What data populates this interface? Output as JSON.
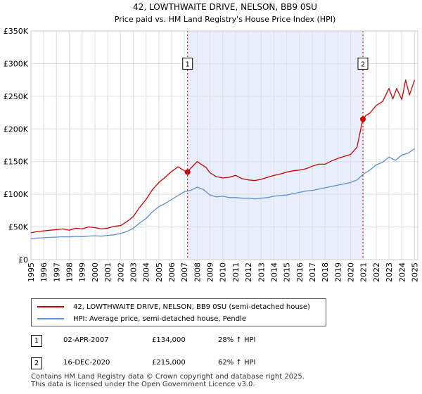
{
  "chart_data": {
    "type": "line",
    "title": "42, LOWTHWAITE DRIVE, NELSON, BB9 0SU",
    "subtitle": "Price paid vs. HM Land Registry's House Price Index (HPI)",
    "xlabel": "",
    "ylabel": "",
    "xlim": [
      1995,
      2025.25
    ],
    "ylim": [
      0,
      350000
    ],
    "x_ticks": [
      "1995",
      "1996",
      "1997",
      "1998",
      "1999",
      "2000",
      "2001",
      "2002",
      "2003",
      "2004",
      "2005",
      "2006",
      "2007",
      "2008",
      "2009",
      "2010",
      "2011",
      "2012",
      "2013",
      "2014",
      "2015",
      "2016",
      "2017",
      "2018",
      "2019",
      "2020",
      "2021",
      "2022",
      "2023",
      "2024",
      "2025"
    ],
    "y_ticks": [
      {
        "value": 0,
        "label": "£0"
      },
      {
        "value": 50000,
        "label": "£50K"
      },
      {
        "value": 100000,
        "label": "£100K"
      },
      {
        "value": 150000,
        "label": "£150K"
      },
      {
        "value": 200000,
        "label": "£200K"
      },
      {
        "value": 250000,
        "label": "£250K"
      },
      {
        "value": 300000,
        "label": "£300K"
      },
      {
        "value": 350000,
        "label": "£350K"
      }
    ],
    "grid": true,
    "shaded_region": {
      "x_start": 2007.25,
      "x_end": 2020.96,
      "color": "#e8eefc"
    },
    "series": [
      {
        "name": "42, LOWTHWAITE DRIVE, NELSON, BB9 0SU (semi-detached house)",
        "color": "#cc0000",
        "x": [
          1995,
          1995.5,
          1996,
          1996.5,
          1997,
          1997.5,
          1998,
          1998.5,
          1999,
          1999.5,
          2000,
          2000.5,
          2001,
          2001.5,
          2002,
          2002.5,
          2003,
          2003.5,
          2004,
          2004.5,
          2005,
          2005.5,
          2006,
          2006.5,
          2007,
          2007.25,
          2007.5,
          2008,
          2008.3,
          2008.7,
          2009,
          2009.5,
          2010,
          2010.5,
          2011,
          2011.5,
          2012,
          2012.5,
          2013,
          2013.5,
          2014,
          2014.5,
          2015,
          2015.5,
          2016,
          2016.5,
          2017,
          2017.5,
          2018,
          2018.5,
          2019,
          2019.5,
          2020,
          2020.5,
          2020.9,
          2020.96,
          2021.2,
          2021.5,
          2022,
          2022.5,
          2023,
          2023.3,
          2023.6,
          2024,
          2024.3,
          2024.6,
          2025
        ],
        "y": [
          41000,
          43000,
          44000,
          45000,
          46000,
          47000,
          45000,
          48000,
          47000,
          50000,
          49000,
          47000,
          48000,
          51000,
          52000,
          58000,
          66000,
          80000,
          92000,
          107000,
          118000,
          126000,
          135000,
          142000,
          136000,
          134000,
          140000,
          150000,
          146000,
          141000,
          133000,
          127000,
          125000,
          126000,
          129000,
          124000,
          122000,
          121000,
          123000,
          126000,
          129000,
          131000,
          134000,
          136000,
          137000,
          139000,
          143000,
          146000,
          146000,
          151000,
          155000,
          158000,
          161000,
          172000,
          210000,
          215000,
          221000,
          224000,
          236000,
          242000,
          262000,
          246000,
          262000,
          245000,
          275000,
          252000,
          275000
        ]
      },
      {
        "name": "HPI: Average price, semi-detached house, Pendle",
        "color": "#5b8ed6",
        "x": [
          1995,
          1995.5,
          1996,
          1996.5,
          1997,
          1997.5,
          1998,
          1998.5,
          1999,
          1999.5,
          2000,
          2000.5,
          2001,
          2001.5,
          2002,
          2002.5,
          2003,
          2003.5,
          2004,
          2004.5,
          2005,
          2005.5,
          2006,
          2006.5,
          2007,
          2007.5,
          2008,
          2008.5,
          2009,
          2009.5,
          2010,
          2010.5,
          2011,
          2011.5,
          2012,
          2012.5,
          2013,
          2013.5,
          2014,
          2014.5,
          2015,
          2015.5,
          2016,
          2016.5,
          2017,
          2017.5,
          2018,
          2018.5,
          2019,
          2019.5,
          2020,
          2020.5,
          2021,
          2021.5,
          2022,
          2022.5,
          2023,
          2023.5,
          2024,
          2024.5,
          2025
        ],
        "y": [
          32000,
          33000,
          33500,
          34000,
          34500,
          35000,
          34800,
          35500,
          35000,
          36000,
          36500,
          36000,
          37000,
          38000,
          40000,
          43000,
          48000,
          56000,
          63000,
          73000,
          81000,
          86000,
          92000,
          98000,
          104000,
          106000,
          111000,
          107000,
          99000,
          96000,
          97000,
          95000,
          95000,
          94000,
          94000,
          93000,
          94000,
          95000,
          97000,
          98000,
          99000,
          101000,
          103000,
          105000,
          106000,
          108000,
          110000,
          112000,
          114000,
          116000,
          118000,
          122000,
          131000,
          137000,
          145000,
          149000,
          157000,
          152000,
          160000,
          163000,
          170000
        ]
      }
    ],
    "markers": [
      {
        "label": "1",
        "x": 2007.25,
        "y": 134000,
        "color": "#cc0000"
      },
      {
        "label": "2",
        "x": 2020.96,
        "y": 215000,
        "color": "#cc0000"
      }
    ]
  },
  "legend": {
    "items": [
      {
        "label": "42, LOWTHWAITE DRIVE, NELSON, BB9 0SU (semi-detached house)",
        "color": "#cc0000"
      },
      {
        "label": "HPI: Average price, semi-detached house, Pendle",
        "color": "#5b8ed6"
      }
    ]
  },
  "sales": [
    {
      "num": "1",
      "date": "02-APR-2007",
      "price": "£134,000",
      "hpi": "28% ↑ HPI"
    },
    {
      "num": "2",
      "date": "16-DEC-2020",
      "price": "£215,000",
      "hpi": "62% ↑ HPI"
    }
  ],
  "footer": {
    "line1": "Contains HM Land Registry data © Crown copyright and database right 2025.",
    "line2": "This data is licensed under the Open Government Licence v3.0."
  }
}
